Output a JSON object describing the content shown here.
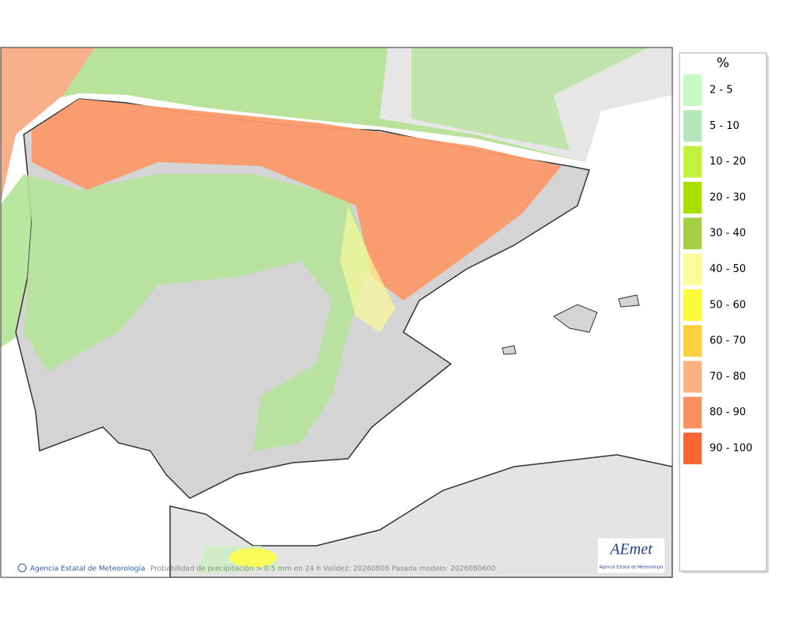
{
  "map": {
    "credit": "Agencia Estatal de Meteorología",
    "caption": "Probabilidad de precipitación > 0.5 mm en 24 h Validez: 20260808 Pasada modelo: 2026080600"
  },
  "legend": {
    "title": "%",
    "items": [
      {
        "label": "2 - 5",
        "color": "#c6fbc6"
      },
      {
        "label": "5 - 10",
        "color": "#b3e6b8"
      },
      {
        "label": "10 - 20",
        "color": "#c2f23e"
      },
      {
        "label": "20 - 30",
        "color": "#a6de00"
      },
      {
        "label": "30 - 40",
        "color": "#a3cf45"
      },
      {
        "label": "40 - 50",
        "color": "#fbfb9a"
      },
      {
        "label": "50 - 60",
        "color": "#fbfb3c"
      },
      {
        "label": "60 - 70",
        "color": "#fcd03e"
      },
      {
        "label": "70 - 80",
        "color": "#fbb182"
      },
      {
        "label": "80 - 90",
        "color": "#fb8f5f"
      },
      {
        "label": "90 - 100",
        "color": "#fb6434"
      }
    ]
  },
  "logo": {
    "name": "AEmet",
    "subtitle": "Agencia Estatal de Meteorología"
  }
}
